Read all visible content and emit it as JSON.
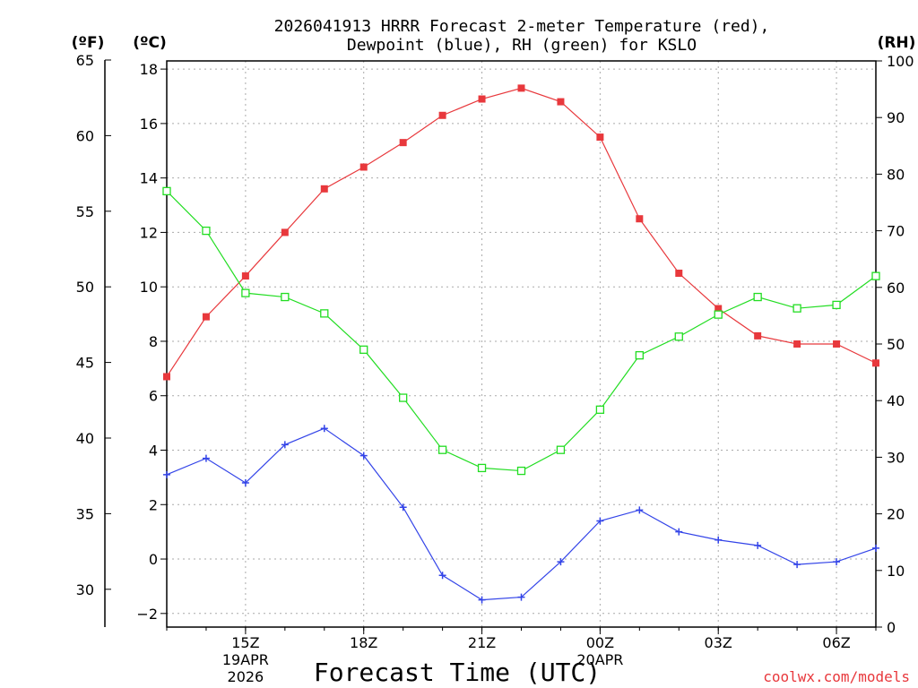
{
  "chart_data": {
    "type": "line",
    "title": "2026041913 HRRR Forecast 2-meter Temperature (red),",
    "subtitle": "Dewpoint (blue), RH (green) for KSLO",
    "xlabel": "Forecast Time (UTC)",
    "credit": "coolwx.com/models",
    "units": {
      "fahrenheit": "(ºF)",
      "celsius": "(ºC)",
      "rh": "(RH)"
    },
    "colors": {
      "temperature": "#e8383c",
      "dewpoint": "#3344e8",
      "rh": "#22dd22",
      "grid": "#aaaaaa"
    },
    "x_hours": [
      13,
      14,
      15,
      16,
      17,
      18,
      19,
      20,
      21,
      22,
      23,
      24,
      25,
      26,
      27,
      28,
      29,
      30,
      31
    ],
    "x_range": [
      13,
      31
    ],
    "x_ticks": [
      {
        "hour": 15,
        "label": "15Z",
        "date1": "19APR",
        "date2": "2026"
      },
      {
        "hour": 18,
        "label": "18Z"
      },
      {
        "hour": 21,
        "label": "21Z"
      },
      {
        "hour": 24,
        "label": "00Z",
        "date1": "20APR"
      },
      {
        "hour": 27,
        "label": "03Z"
      },
      {
        "hour": 30,
        "label": "06Z"
      }
    ],
    "celsius_axis": {
      "range": [
        -2.5,
        18.3
      ],
      "ticks": [
        -2,
        0,
        2,
        4,
        6,
        8,
        10,
        12,
        14,
        16,
        18
      ]
    },
    "fahrenheit_axis": {
      "ticks": [
        30,
        35,
        40,
        45,
        50,
        55,
        60,
        65
      ]
    },
    "rh_axis": {
      "range": [
        0,
        100
      ],
      "ticks": [
        0,
        10,
        20,
        30,
        40,
        50,
        60,
        70,
        80,
        90,
        100
      ]
    },
    "series": [
      {
        "name": "2-meter Temperature",
        "unit": "C",
        "marker": "filled-square",
        "color": "#e8383c",
        "values": [
          6.7,
          8.9,
          10.4,
          12.0,
          13.6,
          14.4,
          15.3,
          16.3,
          16.9,
          17.3,
          16.8,
          15.5,
          12.5,
          10.5,
          9.2,
          8.2,
          7.9,
          7.9,
          7.2
        ]
      },
      {
        "name": "Dewpoint",
        "unit": "C",
        "marker": "plus",
        "color": "#3344e8",
        "values": [
          3.1,
          3.7,
          2.8,
          4.2,
          4.8,
          3.8,
          1.9,
          -0.6,
          -1.5,
          -1.4,
          -0.1,
          1.4,
          1.8,
          1.0,
          0.7,
          0.5,
          -0.2,
          -0.1,
          0.4
        ]
      },
      {
        "name": "RH",
        "unit": "%",
        "marker": "open-square",
        "color": "#22dd22",
        "values": [
          77.0,
          70.0,
          59.0,
          58.3,
          55.4,
          49.0,
          40.5,
          31.3,
          28.1,
          27.6,
          31.3,
          38.4,
          48.0,
          51.3,
          55.2,
          58.3,
          56.3,
          56.9,
          62.0
        ]
      }
    ]
  }
}
